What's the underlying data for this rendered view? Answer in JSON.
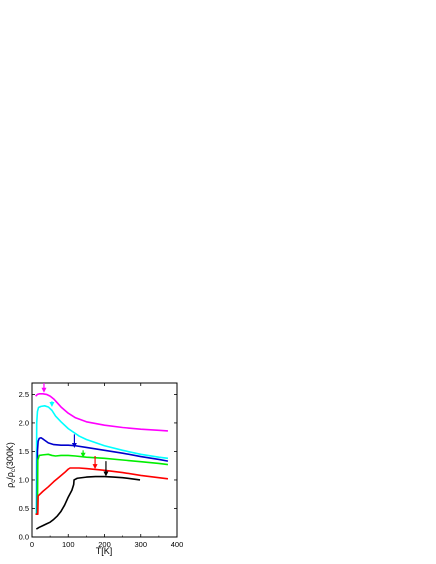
{
  "chart_data": {
    "type": "line",
    "xlabel": "T[K]",
    "ylabel": {
      "p1": "ρ",
      "s1": "c",
      "slash": "/",
      "p2": "ρ",
      "s2": "c",
      "tail": "(300K)"
    },
    "xlim": [
      0,
      400
    ],
    "ylim": [
      0.0,
      2.7
    ],
    "xticks": [
      "0",
      "100",
      "200",
      "300",
      "400"
    ],
    "yticks": [
      "0.0",
      "0.5",
      "1.0",
      "1.5",
      "2.0",
      "2.5"
    ],
    "grid": false,
    "series": [
      {
        "color": "#ff00ff",
        "points": [
          [
            10,
            2.47
          ],
          [
            15,
            2.5
          ],
          [
            20,
            2.51
          ],
          [
            30,
            2.51
          ],
          [
            40,
            2.5
          ],
          [
            50,
            2.47
          ],
          [
            60,
            2.42
          ],
          [
            70,
            2.35
          ],
          [
            80,
            2.28
          ],
          [
            100,
            2.17
          ],
          [
            120,
            2.09
          ],
          [
            150,
            2.02
          ],
          [
            200,
            1.96
          ],
          [
            250,
            1.92
          ],
          [
            300,
            1.89
          ],
          [
            350,
            1.87
          ],
          [
            375,
            1.86
          ]
        ],
        "arrow": {
          "x": 33,
          "y_tip": 2.53,
          "y_tail": 2.7
        }
      },
      {
        "color": "#00ffff",
        "points": [
          [
            10,
            0.4
          ],
          [
            12,
            0.4
          ],
          [
            13,
            2.0
          ],
          [
            15,
            2.2
          ],
          [
            18,
            2.27
          ],
          [
            25,
            2.29
          ],
          [
            35,
            2.3
          ],
          [
            45,
            2.28
          ],
          [
            55,
            2.22
          ],
          [
            65,
            2.12
          ],
          [
            80,
            2.02
          ],
          [
            100,
            1.9
          ],
          [
            130,
            1.77
          ],
          [
            150,
            1.71
          ],
          [
            200,
            1.6
          ],
          [
            250,
            1.52
          ],
          [
            300,
            1.45
          ],
          [
            350,
            1.4
          ],
          [
            375,
            1.38
          ]
        ],
        "arrow": {
          "x": 55,
          "y_tip": 2.28,
          "y_tail": 2.38
        }
      },
      {
        "color": "#0000cc",
        "points": [
          [
            10,
            0.4
          ],
          [
            14,
            0.4
          ],
          [
            15,
            1.5
          ],
          [
            17,
            1.68
          ],
          [
            20,
            1.73
          ],
          [
            25,
            1.74
          ],
          [
            32,
            1.71
          ],
          [
            45,
            1.65
          ],
          [
            60,
            1.62
          ],
          [
            80,
            1.61
          ],
          [
            100,
            1.61
          ],
          [
            120,
            1.6
          ],
          [
            150,
            1.57
          ],
          [
            200,
            1.52
          ],
          [
            250,
            1.47
          ],
          [
            300,
            1.41
          ],
          [
            350,
            1.36
          ],
          [
            375,
            1.33
          ]
        ],
        "arrow": {
          "x": 117,
          "y_tip": 1.56,
          "y_tail": 1.8
        }
      },
      {
        "color": "#00ee00",
        "points": [
          [
            10,
            0.4
          ],
          [
            15,
            0.4
          ],
          [
            16,
            1.35
          ],
          [
            20,
            1.43
          ],
          [
            30,
            1.44
          ],
          [
            45,
            1.45
          ],
          [
            55,
            1.43
          ],
          [
            65,
            1.42
          ],
          [
            80,
            1.43
          ],
          [
            100,
            1.43
          ],
          [
            120,
            1.42
          ],
          [
            150,
            1.4
          ],
          [
            200,
            1.38
          ],
          [
            250,
            1.35
          ],
          [
            300,
            1.32
          ],
          [
            350,
            1.29
          ],
          [
            375,
            1.27
          ]
        ],
        "arrow": {
          "x": 141,
          "y_tip": 1.39,
          "y_tail": 1.52
        }
      },
      {
        "color": "#ff0000",
        "points": [
          [
            10,
            0.4
          ],
          [
            16,
            0.4
          ],
          [
            17,
            0.72
          ],
          [
            30,
            0.8
          ],
          [
            45,
            0.88
          ],
          [
            60,
            0.97
          ],
          [
            75,
            1.05
          ],
          [
            90,
            1.13
          ],
          [
            100,
            1.19
          ],
          [
            105,
            1.21
          ],
          [
            130,
            1.21
          ],
          [
            150,
            1.2
          ],
          [
            200,
            1.17
          ],
          [
            250,
            1.13
          ],
          [
            300,
            1.08
          ],
          [
            350,
            1.04
          ],
          [
            375,
            1.02
          ]
        ],
        "arrow": {
          "x": 174,
          "y_tip": 1.19,
          "y_tail": 1.42
        }
      },
      {
        "color": "#000000",
        "points": [
          [
            12,
            0.14
          ],
          [
            20,
            0.17
          ],
          [
            30,
            0.2
          ],
          [
            40,
            0.23
          ],
          [
            50,
            0.26
          ],
          [
            60,
            0.31
          ],
          [
            70,
            0.37
          ],
          [
            80,
            0.45
          ],
          [
            90,
            0.56
          ],
          [
            100,
            0.7
          ],
          [
            110,
            0.82
          ],
          [
            115,
            0.92
          ],
          [
            116,
            1.0
          ],
          [
            125,
            1.03
          ],
          [
            150,
            1.05
          ],
          [
            175,
            1.06
          ],
          [
            200,
            1.06
          ],
          [
            225,
            1.05
          ],
          [
            250,
            1.04
          ],
          [
            275,
            1.02
          ],
          [
            298,
            1.0
          ]
        ],
        "arrow": {
          "x": 204,
          "y_tip": 1.06,
          "y_tail": 1.33
        }
      }
    ]
  }
}
